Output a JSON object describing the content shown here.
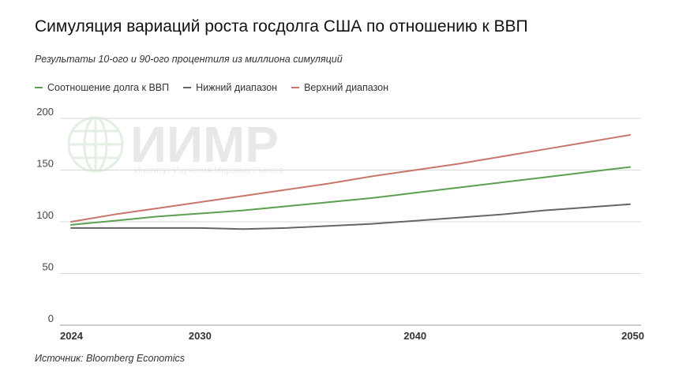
{
  "header": {
    "title": "Симуляция вариаций роста госдолга США по отношению к ВВП",
    "subtitle": "Результаты 10-ого и 90-ого процентиля из миллиона симуляций"
  },
  "footer": {
    "source": "Источник: Bloomberg Economics"
  },
  "watermark": {
    "logo": "ИИМР",
    "caption": "Институт Изучения Мировых Рынков"
  },
  "colors": {
    "ratio": "#5aa04e",
    "lower": "#666666",
    "upper": "#c9756b",
    "grid": "#d8d8d8",
    "axis": "#9a9a9a"
  },
  "chart_data": {
    "type": "line",
    "title": "Симуляция вариаций роста госдолга США по отношению к ВВП",
    "subtitle": "Результаты 10-ого и 90-ого процентиля из миллиона симуляций",
    "xlim": [
      2024,
      2050
    ],
    "ylim": [
      0,
      200
    ],
    "x_ticks": [
      "2024",
      "2030",
      "2040",
      "2050"
    ],
    "y_ticks": [
      "0",
      "50",
      "100",
      "150",
      "200"
    ],
    "grid": true,
    "legend_position": "top-left",
    "series": [
      {
        "name": "Соотношение долга к ВВП",
        "color": "#5aa04e",
        "x": [
          2024,
          2026,
          2028,
          2030,
          2032,
          2034,
          2036,
          2038,
          2040,
          2042,
          2044,
          2046,
          2048,
          2050
        ],
        "values": [
          97,
          101,
          105,
          108,
          111,
          115,
          119,
          123,
          128,
          133,
          138,
          143,
          148,
          153
        ]
      },
      {
        "name": "Нижний диапазон",
        "color": "#666666",
        "x": [
          2024,
          2026,
          2028,
          2030,
          2032,
          2034,
          2036,
          2038,
          2040,
          2042,
          2044,
          2046,
          2048,
          2050
        ],
        "values": [
          94,
          94,
          94,
          94,
          93,
          94,
          96,
          98,
          101,
          104,
          107,
          111,
          114,
          117
        ]
      },
      {
        "name": "Верхний диапазон",
        "color": "#c9756b",
        "x": [
          2024,
          2026,
          2028,
          2030,
          2032,
          2034,
          2036,
          2038,
          2040,
          2042,
          2044,
          2046,
          2048,
          2050
        ],
        "values": [
          100,
          107,
          113,
          119,
          125,
          131,
          137,
          144,
          150,
          156,
          163,
          170,
          177,
          184
        ]
      }
    ]
  }
}
